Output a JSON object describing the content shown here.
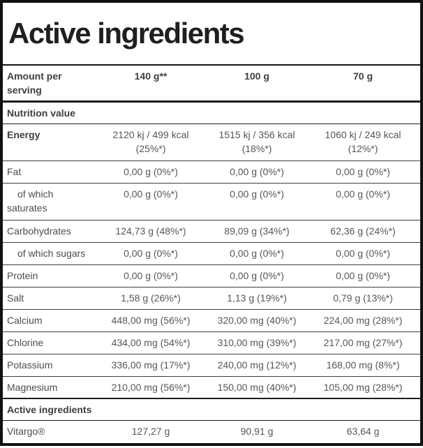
{
  "title": "Active ingredients",
  "header": {
    "label": "Amount per serving",
    "columns": [
      "140 g**",
      "100 g",
      "70 g"
    ]
  },
  "rows": [
    {
      "type": "section",
      "label": "Nutrition value"
    },
    {
      "type": "data",
      "label": "Energy",
      "values": [
        "2120 kj / 499 kcal",
        "1515 kj / 356 kcal",
        "1060 kj / 249 kcal"
      ],
      "pcts": [
        "(25%*)",
        "(18%*)",
        "(12%*)"
      ]
    },
    {
      "type": "data",
      "label": "Fat",
      "values": [
        "0,00 g (0%*)",
        "0,00 g (0%*)",
        "0,00 g (0%*)"
      ]
    },
    {
      "type": "data",
      "label": "of which saturates",
      "indent": true,
      "values": [
        "0,00 g (0%*)",
        "0,00 g (0%*)",
        "0,00 g (0%*)"
      ]
    },
    {
      "type": "data",
      "label": "Carbohydrates",
      "values": [
        "124,73 g (48%*)",
        "89,09 g (34%*)",
        "62,36 g (24%*)"
      ]
    },
    {
      "type": "data",
      "label": "of which sugars",
      "indent": true,
      "values": [
        "0,00 g (0%*)",
        "0,00 g (0%*)",
        "0,00 g (0%*)"
      ]
    },
    {
      "type": "data",
      "label": "Protein",
      "values": [
        "0,00 g (0%*)",
        "0,00 g (0%*)",
        "0,00 g (0%*)"
      ]
    },
    {
      "type": "data",
      "label": "Salt",
      "values": [
        "1,58 g (26%*)",
        "1,13 g (19%*)",
        "0,79 g (13%*)"
      ]
    },
    {
      "type": "data",
      "label": "Calcium",
      "values": [
        "448,00 mg (56%*)",
        "320,00 mg (40%*)",
        "224,00 mg (28%*)"
      ]
    },
    {
      "type": "data",
      "label": "Chlorine",
      "values": [
        "434,00 mg (54%*)",
        "310,00 mg (39%*)",
        "217,00 mg (27%*)"
      ]
    },
    {
      "type": "data",
      "label": "Potassium",
      "values": [
        "336,00 mg (17%*)",
        "240,00 mg (12%*)",
        "168,00 mg (8%*)"
      ]
    },
    {
      "type": "data",
      "label": "Magnesium",
      "values": [
        "210,00 mg (56%*)",
        "150,00 mg (40%*)",
        "105,00 mg (28%*)"
      ]
    },
    {
      "type": "section",
      "label": "Active ingredients"
    },
    {
      "type": "data",
      "label": "Vitargo®",
      "values": [
        "127,27 g",
        "90,91 g",
        "63,64 g"
      ]
    }
  ],
  "colors": {
    "title_ink": "#1f1f1f",
    "label_ink": "#4c4c4c",
    "value_ink": "#565656",
    "bold_ink": "#3e3e3e",
    "outer_border": "#111111",
    "section_rule": "#1c1c1c",
    "row_rule": "#3d3d3d",
    "background": "#ffffff"
  }
}
